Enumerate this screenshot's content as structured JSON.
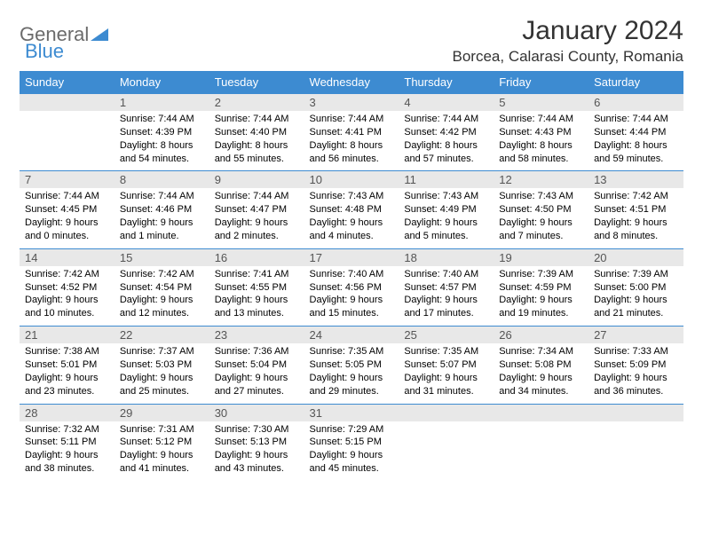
{
  "logo": {
    "general": "General",
    "blue": "Blue"
  },
  "title": "January 2024",
  "location": "Borcea, Calarasi County, Romania",
  "colors": {
    "header_bg": "#3d8bd1",
    "header_text": "#ffffff",
    "daynum_bg": "#e8e8e8",
    "border": "#3d8bd1",
    "title_text": "#333333",
    "body_text": "#000000"
  },
  "day_headers": [
    "Sunday",
    "Monday",
    "Tuesday",
    "Wednesday",
    "Thursday",
    "Friday",
    "Saturday"
  ],
  "weeks": [
    {
      "nums": [
        "",
        "1",
        "2",
        "3",
        "4",
        "5",
        "6"
      ],
      "cells": [
        "",
        "Sunrise: 7:44 AM\nSunset: 4:39 PM\nDaylight: 8 hours and 54 minutes.",
        "Sunrise: 7:44 AM\nSunset: 4:40 PM\nDaylight: 8 hours and 55 minutes.",
        "Sunrise: 7:44 AM\nSunset: 4:41 PM\nDaylight: 8 hours and 56 minutes.",
        "Sunrise: 7:44 AM\nSunset: 4:42 PM\nDaylight: 8 hours and 57 minutes.",
        "Sunrise: 7:44 AM\nSunset: 4:43 PM\nDaylight: 8 hours and 58 minutes.",
        "Sunrise: 7:44 AM\nSunset: 4:44 PM\nDaylight: 8 hours and 59 minutes."
      ]
    },
    {
      "nums": [
        "7",
        "8",
        "9",
        "10",
        "11",
        "12",
        "13"
      ],
      "cells": [
        "Sunrise: 7:44 AM\nSunset: 4:45 PM\nDaylight: 9 hours and 0 minutes.",
        "Sunrise: 7:44 AM\nSunset: 4:46 PM\nDaylight: 9 hours and 1 minute.",
        "Sunrise: 7:44 AM\nSunset: 4:47 PM\nDaylight: 9 hours and 2 minutes.",
        "Sunrise: 7:43 AM\nSunset: 4:48 PM\nDaylight: 9 hours and 4 minutes.",
        "Sunrise: 7:43 AM\nSunset: 4:49 PM\nDaylight: 9 hours and 5 minutes.",
        "Sunrise: 7:43 AM\nSunset: 4:50 PM\nDaylight: 9 hours and 7 minutes.",
        "Sunrise: 7:42 AM\nSunset: 4:51 PM\nDaylight: 9 hours and 8 minutes."
      ]
    },
    {
      "nums": [
        "14",
        "15",
        "16",
        "17",
        "18",
        "19",
        "20"
      ],
      "cells": [
        "Sunrise: 7:42 AM\nSunset: 4:52 PM\nDaylight: 9 hours and 10 minutes.",
        "Sunrise: 7:42 AM\nSunset: 4:54 PM\nDaylight: 9 hours and 12 minutes.",
        "Sunrise: 7:41 AM\nSunset: 4:55 PM\nDaylight: 9 hours and 13 minutes.",
        "Sunrise: 7:40 AM\nSunset: 4:56 PM\nDaylight: 9 hours and 15 minutes.",
        "Sunrise: 7:40 AM\nSunset: 4:57 PM\nDaylight: 9 hours and 17 minutes.",
        "Sunrise: 7:39 AM\nSunset: 4:59 PM\nDaylight: 9 hours and 19 minutes.",
        "Sunrise: 7:39 AM\nSunset: 5:00 PM\nDaylight: 9 hours and 21 minutes."
      ]
    },
    {
      "nums": [
        "21",
        "22",
        "23",
        "24",
        "25",
        "26",
        "27"
      ],
      "cells": [
        "Sunrise: 7:38 AM\nSunset: 5:01 PM\nDaylight: 9 hours and 23 minutes.",
        "Sunrise: 7:37 AM\nSunset: 5:03 PM\nDaylight: 9 hours and 25 minutes.",
        "Sunrise: 7:36 AM\nSunset: 5:04 PM\nDaylight: 9 hours and 27 minutes.",
        "Sunrise: 7:35 AM\nSunset: 5:05 PM\nDaylight: 9 hours and 29 minutes.",
        "Sunrise: 7:35 AM\nSunset: 5:07 PM\nDaylight: 9 hours and 31 minutes.",
        "Sunrise: 7:34 AM\nSunset: 5:08 PM\nDaylight: 9 hours and 34 minutes.",
        "Sunrise: 7:33 AM\nSunset: 5:09 PM\nDaylight: 9 hours and 36 minutes."
      ]
    },
    {
      "nums": [
        "28",
        "29",
        "30",
        "31",
        "",
        "",
        ""
      ],
      "cells": [
        "Sunrise: 7:32 AM\nSunset: 5:11 PM\nDaylight: 9 hours and 38 minutes.",
        "Sunrise: 7:31 AM\nSunset: 5:12 PM\nDaylight: 9 hours and 41 minutes.",
        "Sunrise: 7:30 AM\nSunset: 5:13 PM\nDaylight: 9 hours and 43 minutes.",
        "Sunrise: 7:29 AM\nSunset: 5:15 PM\nDaylight: 9 hours and 45 minutes.",
        "",
        "",
        ""
      ]
    }
  ]
}
